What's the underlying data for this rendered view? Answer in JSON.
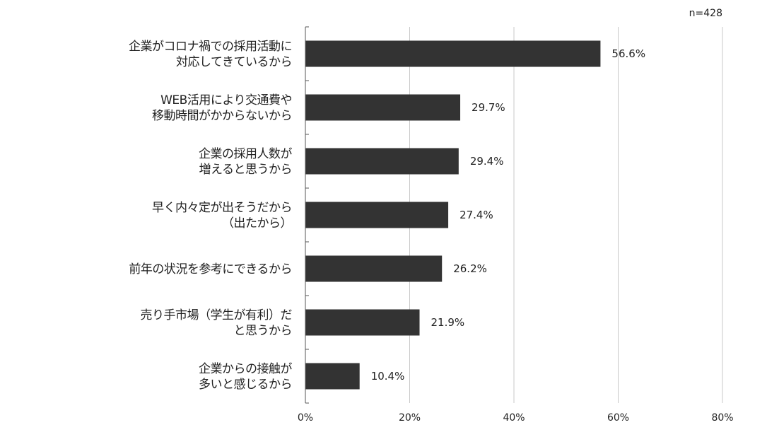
{
  "chart_data": {
    "type": "bar",
    "orientation": "horizontal",
    "sample_note": "n=428",
    "categories": [
      [
        "企業がコロナ禍での採用活動に",
        "対応してきているから"
      ],
      [
        "WEB活用により交通費や",
        "移動時間がかからないから"
      ],
      [
        "企業の採用人数が",
        "増えると思うから"
      ],
      [
        "早く内々定が出そうだから",
        "（出たから）"
      ],
      [
        "前年の状況を参考にできるから"
      ],
      [
        "売り手市場（学生が有利）だ",
        "と思うから"
      ],
      [
        "企業からの接触が",
        "多いと感じるから"
      ]
    ],
    "values": [
      56.6,
      29.7,
      29.4,
      27.4,
      26.2,
      21.9,
      10.4
    ],
    "value_labels": [
      "56.6%",
      "29.7%",
      "29.4%",
      "27.4%",
      "26.2%",
      "21.9%",
      "10.4%"
    ],
    "xlim": [
      0,
      80
    ],
    "xticks": [
      0,
      20,
      40,
      60,
      80
    ],
    "xtick_labels": [
      "0%",
      "20%",
      "40%",
      "60%",
      "80%"
    ],
    "grid": true,
    "bar_color": "#333333",
    "grid_color": "#c8c8c8"
  }
}
